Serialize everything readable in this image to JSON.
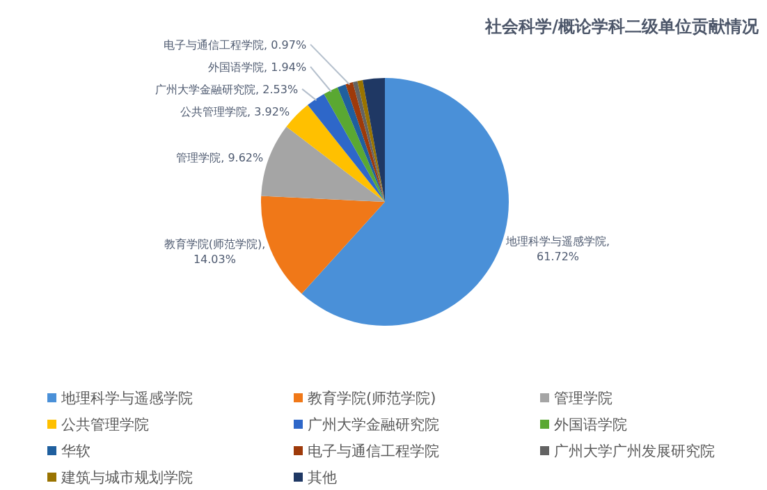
{
  "chart_data": {
    "type": "pie",
    "title": "社会科学/概论学科二级单位贡献情况",
    "categories": [
      "地理科学与遥感学院",
      "教育学院(师范学院)",
      "管理学院",
      "公共管理学院",
      "广州大学金融研究院",
      "外国语学院",
      "华软",
      "电子与通信工程学院",
      "广州大学广州发展研究院",
      "建筑与城市规划学院",
      "其他"
    ],
    "values": [
      61.72,
      14.03,
      9.62,
      3.92,
      2.53,
      1.94,
      1.1,
      0.97,
      0.6,
      0.7,
      2.87
    ],
    "colors": [
      "#4a90d8",
      "#f07818",
      "#a5a5a5",
      "#ffc000",
      "#2e67c9",
      "#5aa832",
      "#1f5f9e",
      "#9e3a0a",
      "#636363",
      "#997300",
      "#1f3864"
    ],
    "value_labels": [
      "地理科学与遥感学院, 61.72%",
      "教育学院(师范学院), 14.03%",
      "管理学院, 9.62%",
      "公共管理学院, 3.92%",
      "广州大学金融研究院, 2.53%",
      "外国语学院, 1.94%",
      null,
      "电子与通信工程学院, 0.97%",
      null,
      null,
      null
    ],
    "legend": "bottom"
  }
}
